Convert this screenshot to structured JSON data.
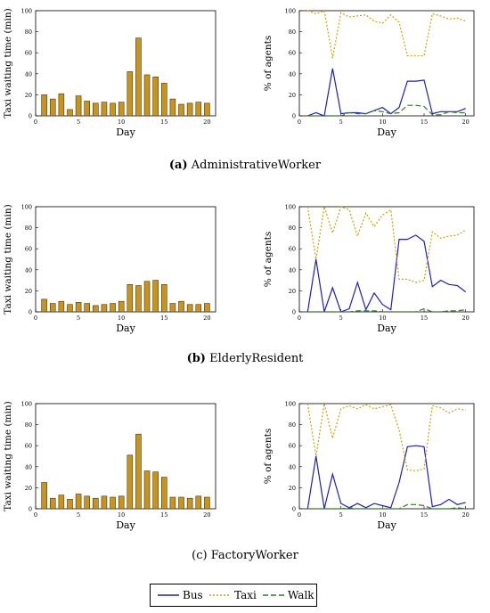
{
  "legend": {
    "bus": "Bus",
    "taxi": "Taxi",
    "walk": "Walk"
  },
  "colors": {
    "bar_fill": "#c8941e",
    "bar_stroke": "#4a3410",
    "bus": "#1f1fbf",
    "taxi": "#c9a400",
    "walk": "#2e7d1e"
  },
  "panels": [
    {
      "caption_tag": "(a)",
      "caption_name": "AdministrativeWorker",
      "waiting": {
        "type": "bar",
        "ylabel": "Taxi waiting time (min)",
        "xlabel": "Day",
        "ylim": [
          0,
          100
        ],
        "xlim": [
          0,
          21
        ],
        "yticks": [
          "0",
          "20",
          "40",
          "60",
          "80",
          "100"
        ],
        "xticks": [
          "0",
          "5",
          "10",
          "15",
          "20"
        ],
        "x": [
          1,
          2,
          3,
          4,
          5,
          6,
          7,
          8,
          9,
          10,
          11,
          12,
          13,
          14,
          15,
          16,
          17,
          18,
          19,
          20
        ],
        "values": [
          20,
          16,
          21,
          6,
          19,
          14,
          12,
          13,
          12,
          13,
          42,
          74,
          39,
          37,
          31,
          16,
          11,
          12,
          13,
          12
        ]
      },
      "agents": {
        "type": "line",
        "ylabel": "% of agents",
        "xlabel": "Day",
        "ylim": [
          0,
          100
        ],
        "xlim": [
          0,
          21
        ],
        "yticks": [
          "0",
          "20",
          "40",
          "60",
          "80",
          "100"
        ],
        "xticks": [
          "0",
          "5",
          "10",
          "15",
          "20"
        ],
        "x": [
          1,
          2,
          3,
          4,
          5,
          6,
          7,
          8,
          9,
          10,
          11,
          12,
          13,
          14,
          15,
          16,
          17,
          18,
          19,
          20
        ],
        "series": [
          {
            "name": "Bus",
            "values": [
              0,
              3,
              0,
              45,
              2,
              3,
              3,
              2,
              5,
              8,
              2,
              8,
              33,
              33,
              34,
              2,
              4,
              4,
              4,
              7
            ]
          },
          {
            "name": "Taxi",
            "values": [
              100,
              97,
              100,
              55,
              98,
              94,
              95,
              96,
              90,
              88,
              96,
              89,
              57,
              57,
              57,
              97,
              95,
              92,
              93,
              90
            ]
          },
          {
            "name": "Walk",
            "values": [
              0,
              0,
              0,
              0,
              0,
              3,
              2,
              2,
              5,
              4,
              2,
              3,
              10,
              10,
              9,
              1,
              1,
              4,
              3,
              3
            ]
          }
        ]
      }
    },
    {
      "caption_tag": "(b)",
      "caption_name": "ElderlyResident",
      "waiting": {
        "type": "bar",
        "ylabel": "Taxi waiting time (min)",
        "xlabel": "Day",
        "ylim": [
          0,
          100
        ],
        "xlim": [
          0,
          21
        ],
        "yticks": [
          "0",
          "20",
          "40",
          "60",
          "80",
          "100"
        ],
        "xticks": [
          "0",
          "5",
          "10",
          "15",
          "20"
        ],
        "x": [
          1,
          2,
          3,
          4,
          5,
          6,
          7,
          8,
          9,
          10,
          11,
          12,
          13,
          14,
          15,
          16,
          17,
          18,
          19,
          20
        ],
        "values": [
          12,
          8,
          10,
          7,
          9,
          8,
          6,
          7,
          8,
          10,
          26,
          25,
          29,
          30,
          26,
          8,
          10,
          7,
          7,
          8
        ]
      },
      "agents": {
        "type": "line",
        "ylabel": "% of agents",
        "xlabel": "Day",
        "ylim": [
          0,
          100
        ],
        "xlim": [
          0,
          21
        ],
        "yticks": [
          "0",
          "20",
          "40",
          "60",
          "80",
          "100"
        ],
        "xticks": [
          "0",
          "5",
          "10",
          "15",
          "20"
        ],
        "x": [
          1,
          2,
          3,
          4,
          5,
          6,
          7,
          8,
          9,
          10,
          11,
          12,
          13,
          14,
          15,
          16,
          17,
          18,
          19,
          20
        ],
        "series": [
          {
            "name": "Bus",
            "values": [
              0,
              50,
              0,
              23,
              0,
              3,
              28,
              2,
              18,
              7,
              2,
              69,
              69,
              73,
              67,
              24,
              30,
              26,
              25,
              19
            ]
          },
          {
            "name": "Taxi",
            "values": [
              100,
              50,
              100,
              75,
              100,
              97,
              72,
              94,
              81,
              92,
              97,
              31,
              31,
              28,
              30,
              76,
              70,
              72,
              73,
              78
            ]
          },
          {
            "name": "Walk",
            "values": [
              0,
              0,
              0,
              0,
              0,
              0,
              1,
              1,
              1,
              0,
              0,
              0,
              0,
              0,
              3,
              0,
              0,
              1,
              1,
              2
            ]
          }
        ]
      }
    },
    {
      "caption_tag": "(c)",
      "caption_name": "FactoryWorker",
      "waiting": {
        "type": "bar",
        "ylabel": "Taxi waiting time (min)",
        "xlabel": "Day",
        "ylim": [
          0,
          100
        ],
        "xlim": [
          0,
          21
        ],
        "yticks": [
          "0",
          "20",
          "40",
          "60",
          "80",
          "100"
        ],
        "xticks": [
          "0",
          "5",
          "10",
          "15",
          "20"
        ],
        "x": [
          1,
          2,
          3,
          4,
          5,
          6,
          7,
          8,
          9,
          10,
          11,
          12,
          13,
          14,
          15,
          16,
          17,
          18,
          19,
          20
        ],
        "values": [
          25,
          10,
          13,
          9,
          14,
          12,
          10,
          12,
          11,
          12,
          51,
          71,
          36,
          35,
          30,
          11,
          11,
          10,
          12,
          11
        ]
      },
      "agents": {
        "type": "line",
        "ylabel": "% of agents",
        "xlabel": "Day",
        "ylim": [
          0,
          100
        ],
        "xlim": [
          0,
          21
        ],
        "yticks": [
          "0",
          "20",
          "40",
          "60",
          "80",
          "100"
        ],
        "xticks": [
          "0",
          "5",
          "10",
          "15",
          "20"
        ],
        "x": [
          1,
          2,
          3,
          4,
          5,
          6,
          7,
          8,
          9,
          10,
          11,
          12,
          13,
          14,
          15,
          16,
          17,
          18,
          19,
          20
        ],
        "series": [
          {
            "name": "Bus",
            "values": [
              0,
              50,
              0,
              33,
              5,
              1,
              5,
              1,
              5,
              3,
              1,
              25,
              59,
              60,
              59,
              2,
              4,
              9,
              4,
              6
            ]
          },
          {
            "name": "Taxi",
            "values": [
              100,
              50,
              100,
              67,
              95,
              98,
              95,
              99,
              95,
              97,
              99,
              75,
              37,
              36,
              38,
              98,
              96,
              91,
              95,
              94
            ]
          },
          {
            "name": "Walk",
            "values": [
              0,
              0,
              0,
              0,
              0,
              1,
              0,
              0,
              0,
              0,
              0,
              0,
              4,
              4,
              3,
              0,
              0,
              0,
              1,
              0
            ]
          }
        ]
      }
    }
  ]
}
